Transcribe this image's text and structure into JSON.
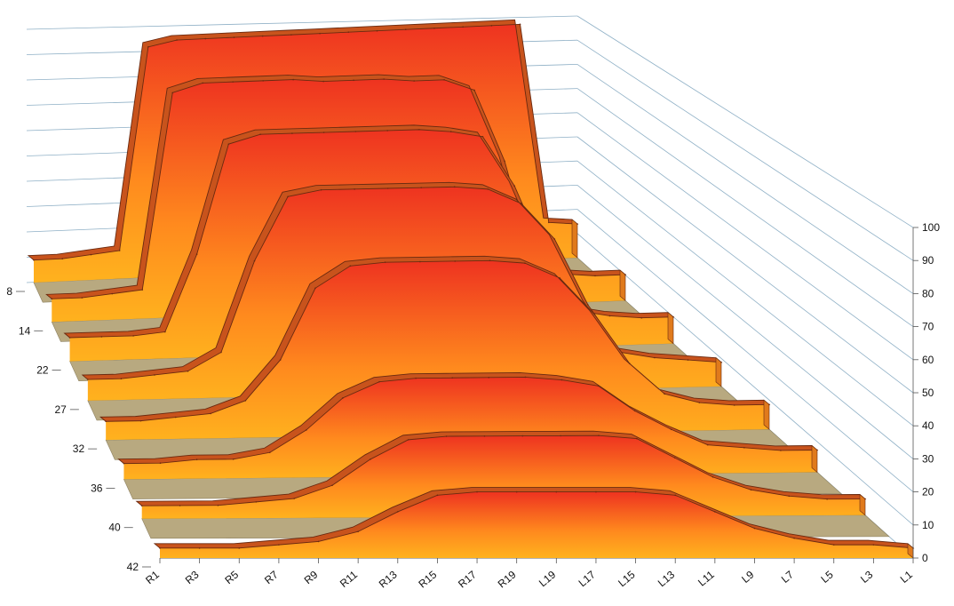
{
  "chart_data": {
    "type": "area",
    "subtype": "3d-ribbon",
    "title": "",
    "xlabel": "",
    "ylabel": "",
    "zlim": [
      0,
      100
    ],
    "z_ticks": [
      "0",
      "10",
      "20",
      "30",
      "40",
      "50",
      "60",
      "70",
      "80",
      "90",
      "100"
    ],
    "x_categories": [
      "R1",
      "R3",
      "R5",
      "R7",
      "R9",
      "R11",
      "R13",
      "R15",
      "R17",
      "R19",
      "L19",
      "L17",
      "L15",
      "L13",
      "L11",
      "L9",
      "L7",
      "L5",
      "L3",
      "L1"
    ],
    "series": [
      {
        "name": "8",
        "values": [
          8,
          8,
          9,
          10,
          82,
          84,
          84,
          84,
          84,
          84,
          84,
          84,
          84,
          84,
          84,
          84,
          84,
          84,
          13,
          12
        ]
      },
      {
        "name": "14",
        "values": [
          8,
          8,
          9,
          10,
          78,
          81,
          81,
          81,
          81,
          80,
          80,
          80,
          79,
          79,
          75,
          50,
          12,
          10,
          9,
          9
        ]
      },
      {
        "name": "22",
        "values": [
          8,
          8,
          8,
          9,
          35,
          72,
          75,
          75,
          75,
          75,
          75,
          75,
          74,
          72,
          55,
          30,
          12,
          10,
          9,
          9
        ]
      },
      {
        "name": "27",
        "values": [
          7,
          7,
          8,
          9,
          15,
          45,
          66,
          68,
          68,
          68,
          68,
          68,
          67,
          62,
          50,
          28,
          12,
          10,
          9,
          8
        ]
      },
      {
        "name": "32",
        "values": [
          6,
          6,
          7,
          8,
          12,
          25,
          48,
          55,
          56,
          56,
          56,
          56,
          55,
          50,
          38,
          22,
          12,
          9,
          8,
          8
        ]
      },
      {
        "name": "36",
        "values": [
          5,
          5,
          6,
          6,
          8,
          15,
          25,
          30,
          31,
          31,
          31,
          31,
          30,
          28,
          20,
          14,
          9,
          8,
          7,
          7
        ]
      },
      {
        "name": "40",
        "values": [
          4,
          4,
          4,
          5,
          6,
          10,
          18,
          24,
          25,
          25,
          25,
          25,
          25,
          24,
          18,
          12,
          8,
          6,
          5,
          5
        ]
      },
      {
        "name": "42",
        "values": [
          3,
          3,
          3,
          4,
          5,
          8,
          14,
          19,
          20,
          20,
          20,
          20,
          20,
          19,
          14,
          9,
          6,
          4,
          4,
          3
        ]
      }
    ],
    "grid": true,
    "legend": "none"
  }
}
